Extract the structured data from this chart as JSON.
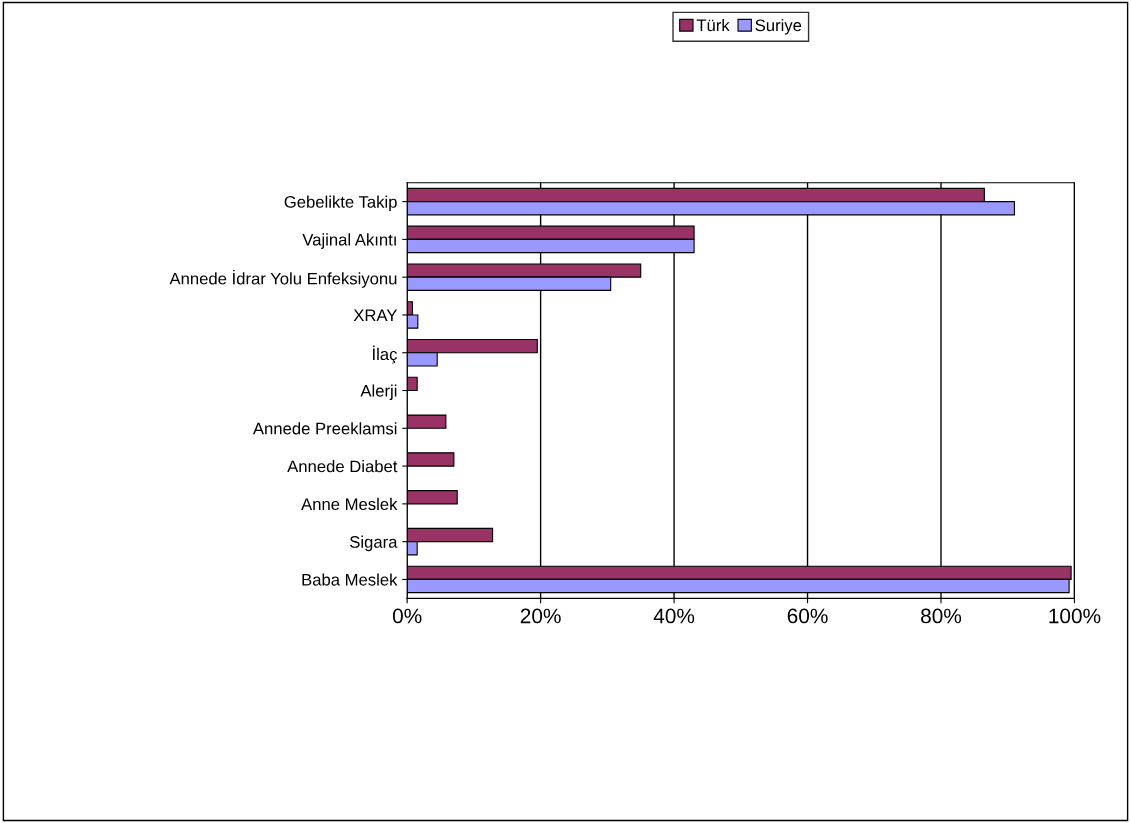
{
  "chart_data": {
    "type": "bar",
    "orientation": "horizontal",
    "categories": [
      "Gebelikte Takip",
      "Vajinal Akıntı",
      "Annede İdrar Yolu Enfeksiyonu",
      "XRAY",
      "İlaç",
      "Alerji",
      "Annede Preeklamsi",
      "Annede Diabet",
      "Anne Meslek",
      "Sigara",
      "Baba Meslek"
    ],
    "series": [
      {
        "name": "Türk",
        "color": "#993366",
        "values": [
          86.5,
          43,
          35,
          0.8,
          19.5,
          1.5,
          5.8,
          7,
          7.5,
          12.8,
          99.5
        ]
      },
      {
        "name": "Suriye",
        "color": "#9999ff",
        "values": [
          91,
          43,
          30.5,
          1.6,
          4.5,
          null,
          null,
          null,
          null,
          1.5,
          99.2
        ]
      }
    ],
    "xlim": [
      0,
      100
    ],
    "xticks": [
      {
        "value": 0,
        "label": "0%"
      },
      {
        "value": 20,
        "label": "20%"
      },
      {
        "value": 40,
        "label": "40%"
      },
      {
        "value": 60,
        "label": "60%"
      },
      {
        "value": 80,
        "label": "80%"
      },
      {
        "value": 100,
        "label": "100%"
      }
    ],
    "grid": "x",
    "legend": "top"
  }
}
